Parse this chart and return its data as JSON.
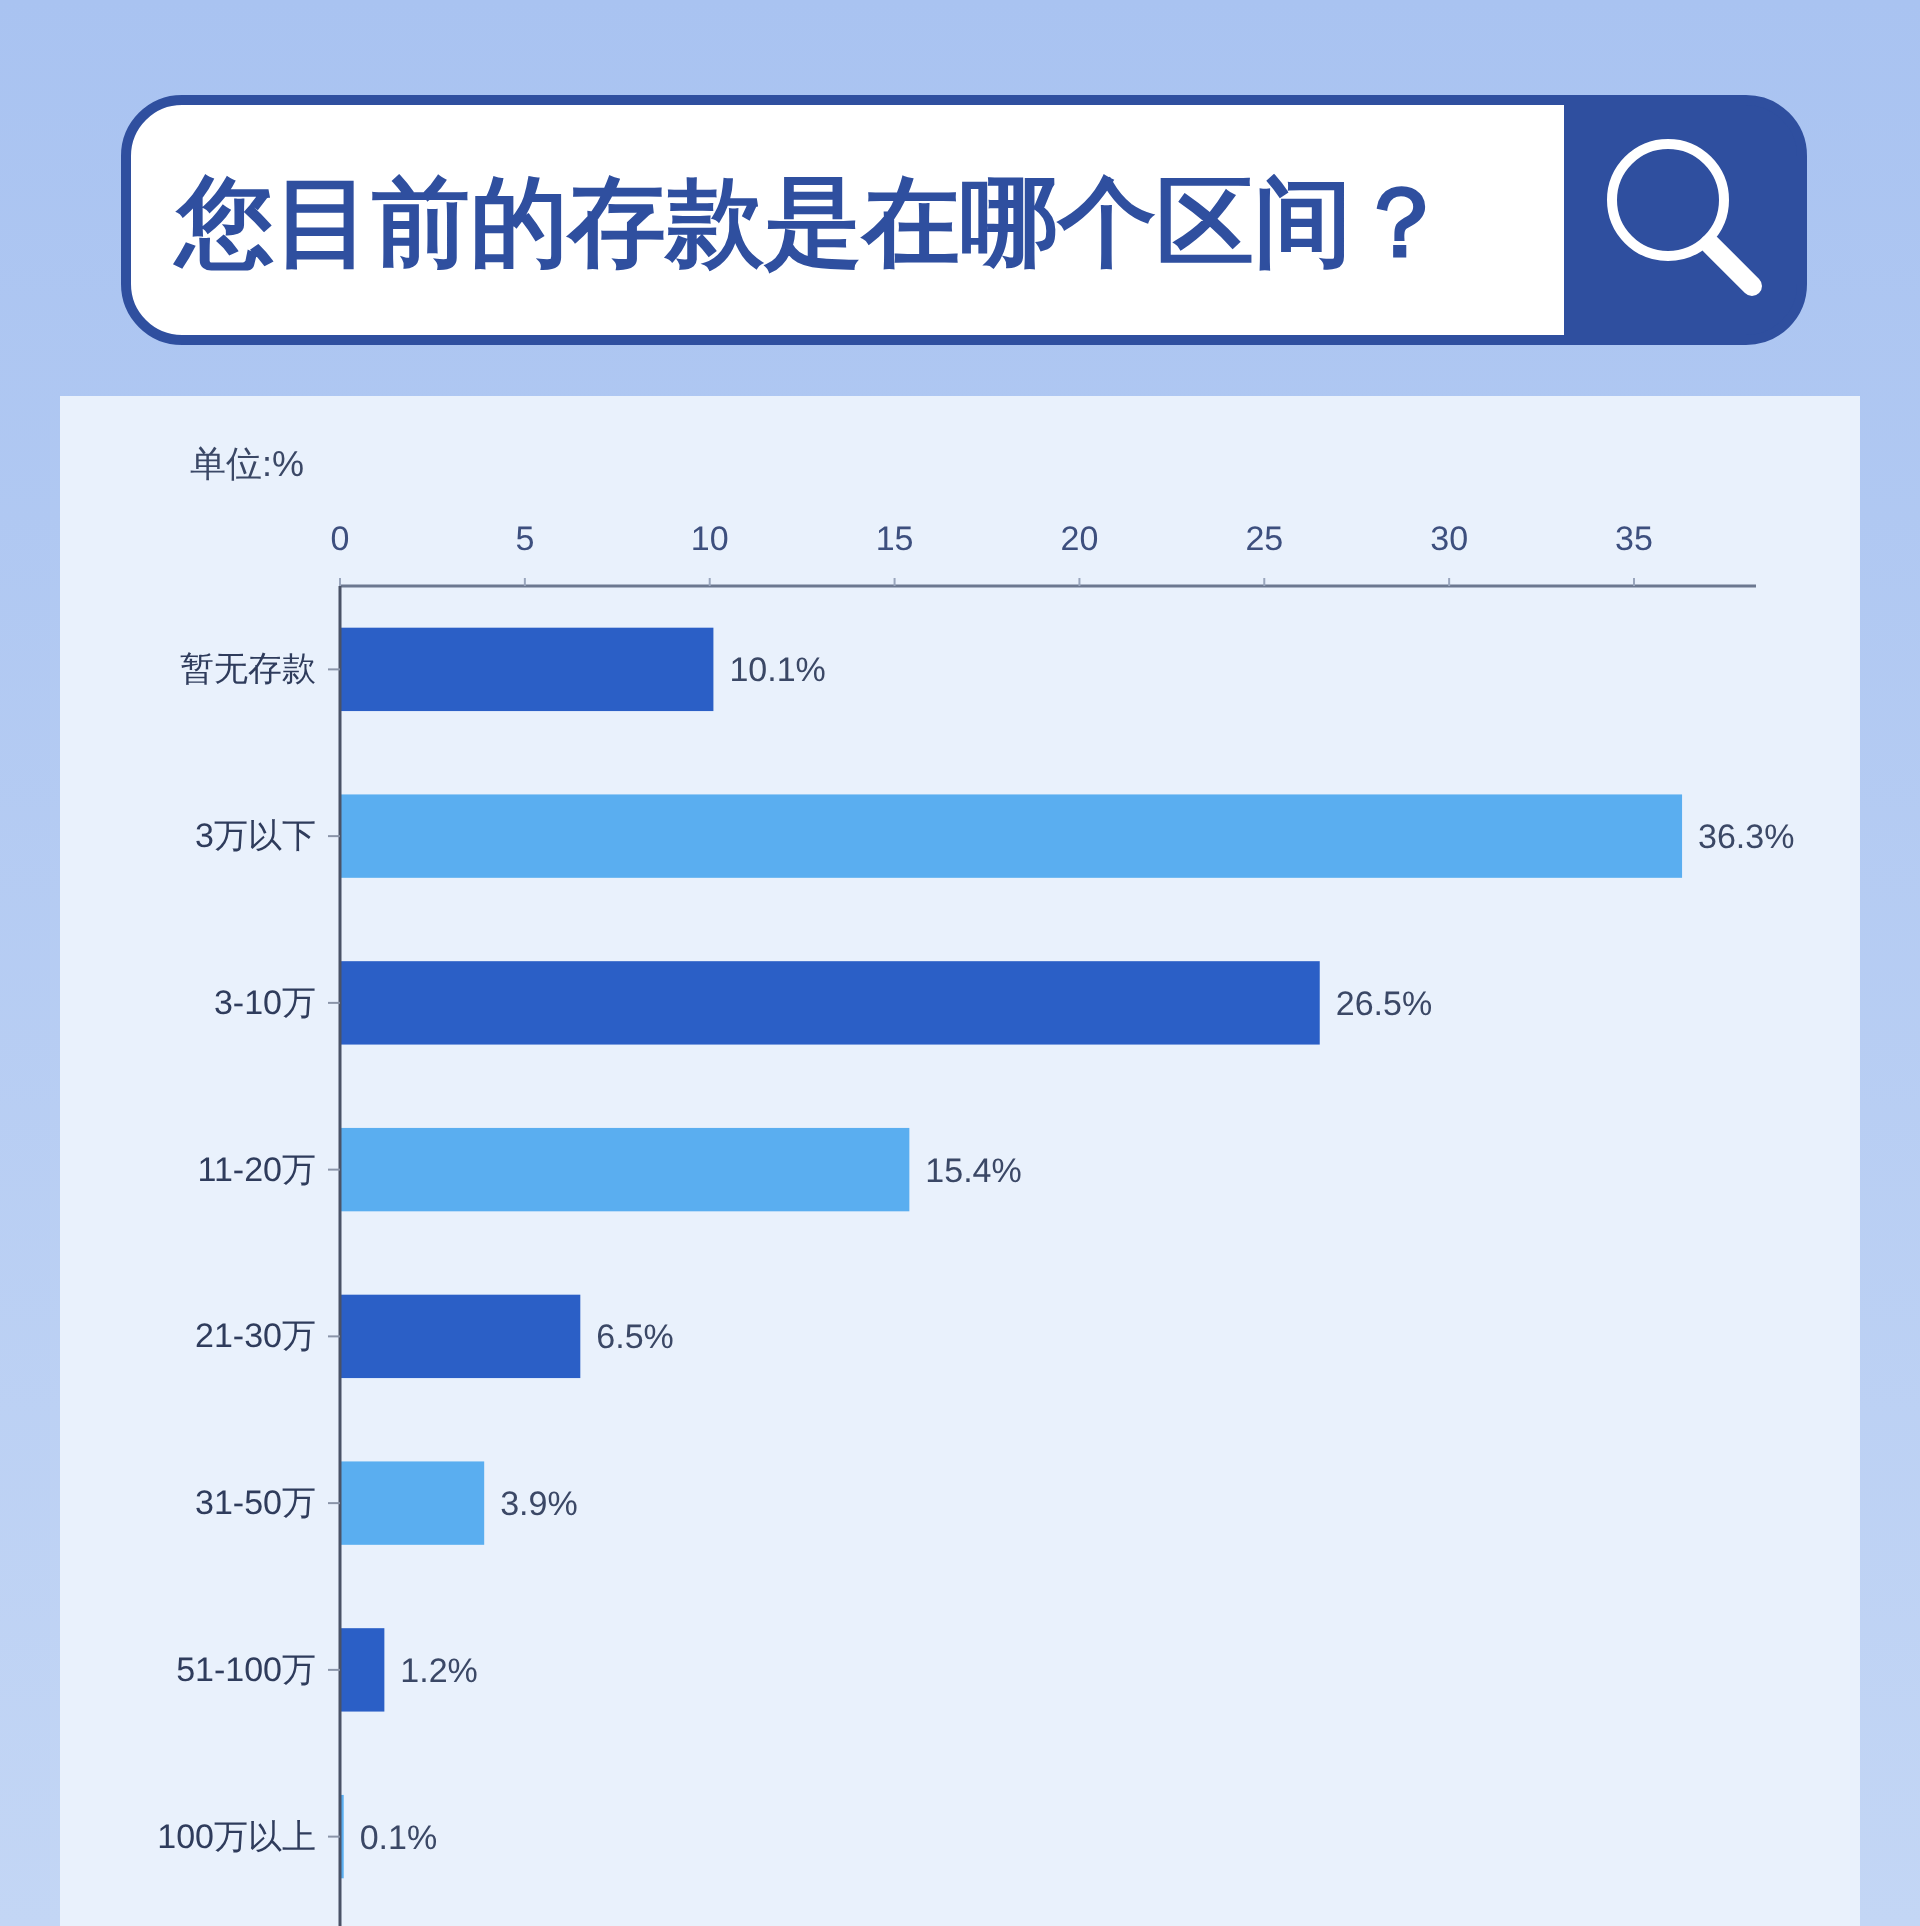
{
  "chart_data": {
    "type": "bar",
    "orientation": "horizontal",
    "title": "您目前的存款是在哪个区间？",
    "xlabel": "单位:%",
    "categories": [
      "暂无存款",
      "3万以下",
      "3-10万",
      "11-20万",
      "21-30万",
      "31-50万",
      "51-100万",
      "100万以上"
    ],
    "values": [
      10.1,
      36.3,
      26.5,
      15.4,
      6.5,
      3.9,
      1.2,
      0.1
    ],
    "colors": [
      "#2b5fc6",
      "#5aaef0",
      "#2b5fc6",
      "#5aaef0",
      "#2b5fc6",
      "#5aaef0",
      "#2b5fc6",
      "#5aaef0"
    ],
    "value_labels": [
      "10.1%",
      "36.3%",
      "26.5%",
      "15.4%",
      "6.5%",
      "3.9%",
      "1.2%",
      "0.1%"
    ],
    "xlim": [
      0,
      38.3
    ],
    "xticks": [
      0,
      5,
      10,
      15,
      20,
      25,
      30,
      35
    ],
    "grid": false
  }
}
